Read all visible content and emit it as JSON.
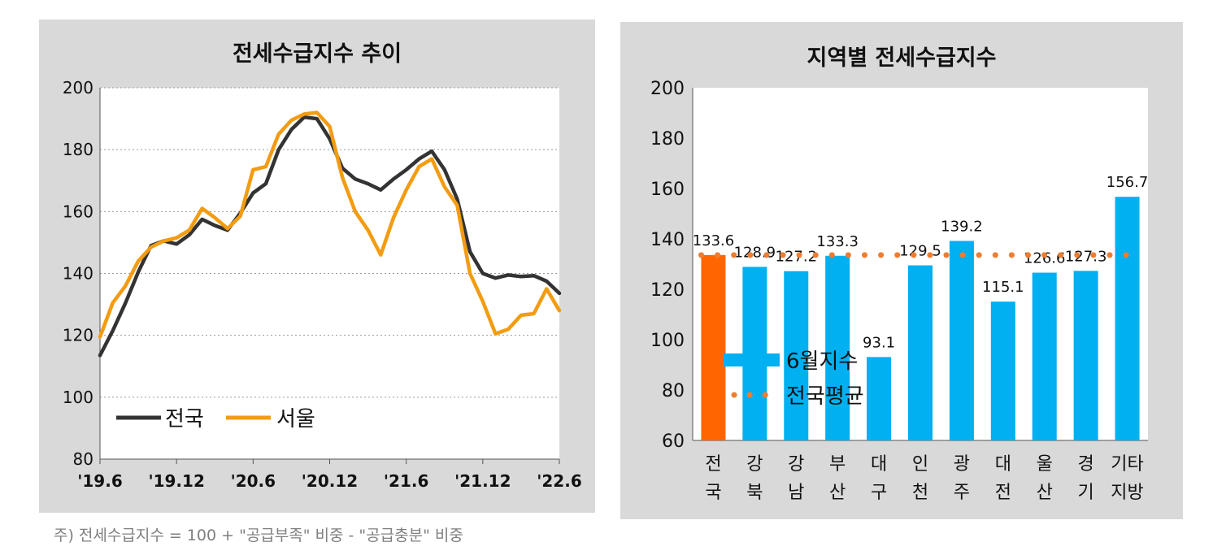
{
  "footnote": "주) 전세수급지수 = 100 +  \"공급부족\" 비중 - \"공급충분\" 비중",
  "colors": {
    "national": "#333333",
    "seoul": "#f39c12",
    "bar": "#00b0f0",
    "bar_highlight": "#ff6600",
    "avg_line": "#ed7d31"
  },
  "chart_data": [
    {
      "type": "line",
      "title": "전세수급지수 추이",
      "ylim": [
        80,
        200
      ],
      "yticks": [
        "80",
        "100",
        "120",
        "140",
        "160",
        "180",
        "200"
      ],
      "xtick_labels": [
        "'19.6",
        "'19.12",
        "'20.6",
        "'20.12",
        "'21.6",
        "'21.12",
        "'22.6"
      ],
      "grid": true,
      "legend_position": "bottom-left",
      "series": [
        {
          "name": "전국",
          "values": [
            113.5,
            121.5,
            130.5,
            140.5,
            149,
            150.5,
            149.5,
            152.5,
            157.5,
            155.5,
            154,
            159.5,
            166,
            169,
            180,
            186.5,
            190.5,
            190,
            183.5,
            174,
            170.5,
            169,
            167,
            170.5,
            173.5,
            177,
            179.5,
            173.5,
            164,
            147,
            140,
            138.5,
            139.5,
            139,
            139.3,
            137.5,
            133.6
          ]
        },
        {
          "name": "서울",
          "values": [
            119.5,
            130.5,
            136,
            144,
            148.5,
            150.5,
            151.5,
            154,
            161,
            158,
            154.5,
            158.5,
            173.5,
            174.5,
            185,
            189.5,
            191.5,
            192,
            187.5,
            171,
            160,
            154,
            146,
            158,
            167,
            174.5,
            177,
            168,
            162,
            140,
            131,
            120.5,
            122,
            126.5,
            127,
            135,
            128
          ]
        }
      ]
    },
    {
      "type": "bar",
      "title": "지역별 전세수급지수",
      "ylim": [
        60,
        200
      ],
      "yticks": [
        "60",
        "80",
        "100",
        "120",
        "140",
        "160",
        "180",
        "200"
      ],
      "categories": [
        [
          "전",
          "국"
        ],
        [
          "강",
          "북"
        ],
        [
          "강",
          "남"
        ],
        [
          "부",
          "산"
        ],
        [
          "대",
          "구"
        ],
        [
          "인",
          "천"
        ],
        [
          "광",
          "주"
        ],
        [
          "대",
          "전"
        ],
        [
          "울",
          "산"
        ],
        [
          "경",
          "기"
        ],
        [
          "기타",
          "지방"
        ]
      ],
      "series": [
        {
          "name": "6월지수",
          "values": [
            133.6,
            128.9,
            127.2,
            133.3,
            93.1,
            129.5,
            139.2,
            115.1,
            126.6,
            127.3,
            156.7
          ],
          "labels": [
            "133.6",
            "128.9",
            "127.2",
            "133.3",
            "93.1",
            "129.5",
            "139.2",
            "115.1",
            "126.6",
            "127.3",
            "156.7"
          ]
        },
        {
          "name": "전국평균",
          "value": 133.6
        }
      ],
      "highlight_index": 0
    }
  ]
}
